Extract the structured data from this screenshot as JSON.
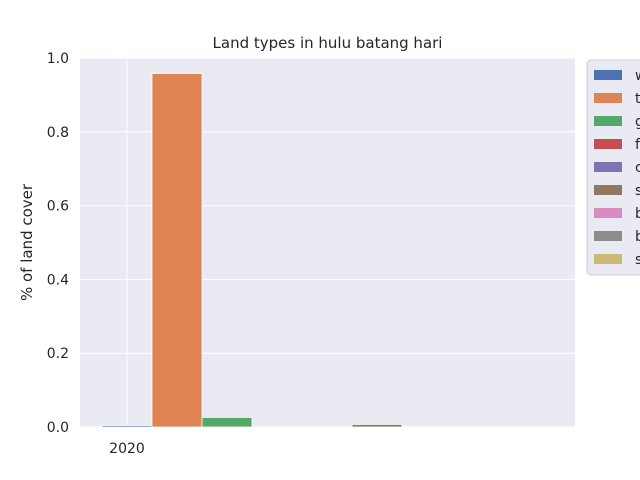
{
  "chart_data": {
    "type": "bar",
    "title": "Land types in hulu batang hari",
    "xlabel": "",
    "ylabel": "% of land cover",
    "categories": [
      "2020"
    ],
    "ylim": [
      0,
      1.0
    ],
    "yticks": [
      "0.0",
      "0.2",
      "0.4",
      "0.6",
      "0.8",
      "1.0"
    ],
    "grid": true,
    "legend_placement": "outside-right",
    "series": [
      {
        "name": "w",
        "color": "#4c72b0",
        "values": [
          0.004
        ]
      },
      {
        "name": "t",
        "color": "#dd8452",
        "values": [
          0.958
        ]
      },
      {
        "name": "g",
        "color": "#55a868",
        "values": [
          0.026
        ]
      },
      {
        "name": "f",
        "color": "#c44e52",
        "values": [
          0.0
        ]
      },
      {
        "name": "c",
        "color": "#8172b3",
        "values": [
          0.0
        ]
      },
      {
        "name": "s",
        "color": "#937860",
        "values": [
          0.007
        ]
      },
      {
        "name": "b",
        "color": "#da8bc3",
        "values": [
          0.0
        ]
      },
      {
        "name": "b",
        "color": "#8c8c8c",
        "values": [
          0.0
        ]
      },
      {
        "name": "s",
        "color": "#ccb974",
        "values": [
          0.0
        ]
      }
    ]
  }
}
